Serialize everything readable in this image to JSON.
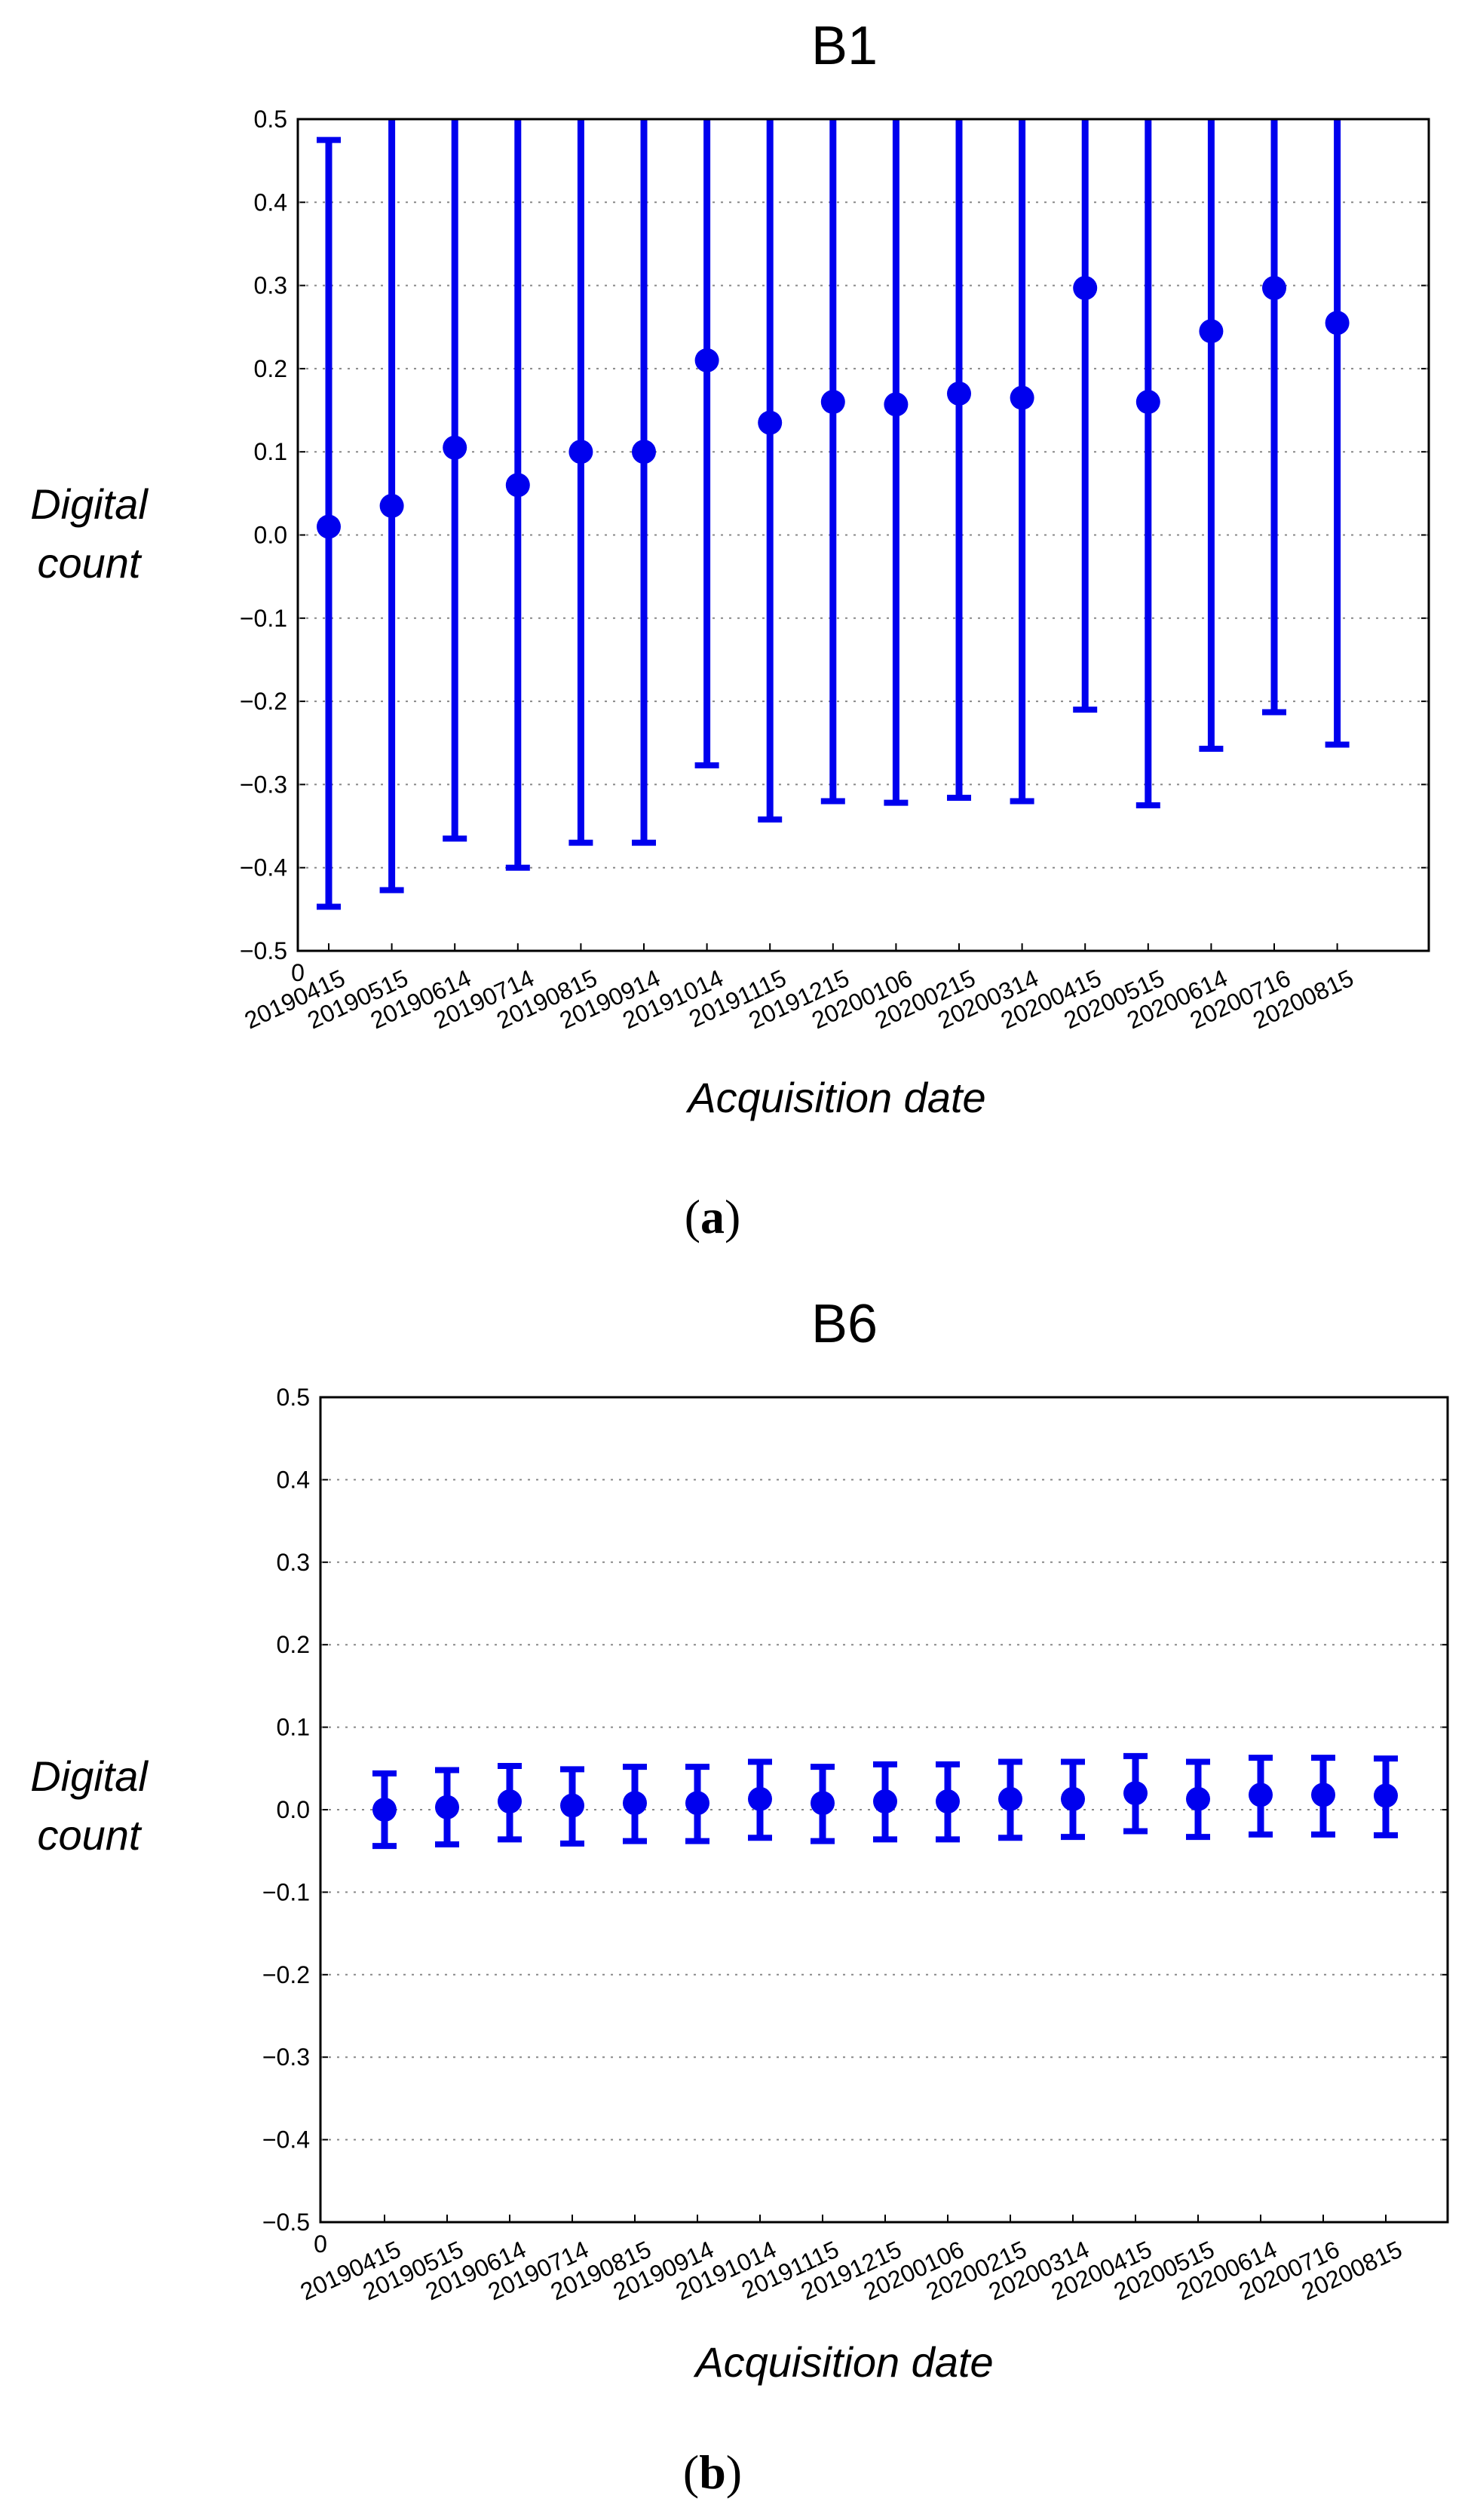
{
  "colors": {
    "series": "#0000ee",
    "grid": "#888888",
    "axis": "#000000"
  },
  "chart_data": [
    {
      "type": "scatter",
      "panel_label": "a",
      "title": "B1",
      "xlabel": "Acquisition date",
      "ylabel": [
        "Digital",
        "count"
      ],
      "ylim": [
        -0.5,
        0.5
      ],
      "yticks": [
        "0.5",
        "0.4",
        "0.3",
        "0.2",
        "0.1",
        "0.0",
        "−0.1",
        "−0.2",
        "−0.3",
        "−0.4",
        "−0.5"
      ],
      "x_zero_label": "0",
      "grid": "horizontal dotted",
      "categories": [
        "20190415",
        "20190515",
        "20190614",
        "20190714",
        "20190815",
        "20190914",
        "20191014",
        "20191115",
        "20191215",
        "20200106",
        "20200215",
        "20200314",
        "20200415",
        "20200515",
        "20200614",
        "20200716",
        "20200815"
      ],
      "values": [
        0.01,
        0.035,
        0.105,
        0.06,
        0.1,
        0.1,
        0.21,
        0.135,
        0.16,
        0.157,
        0.17,
        0.165,
        0.297,
        0.16,
        0.245,
        0.297,
        0.255
      ],
      "err_upper": [
        0.475,
        0.5,
        0.5,
        0.5,
        0.5,
        0.5,
        0.5,
        0.5,
        0.5,
        0.5,
        0.5,
        0.5,
        0.5,
        0.5,
        0.5,
        0.5,
        0.5
      ],
      "err_lower": [
        -0.447,
        -0.427,
        -0.365,
        -0.4,
        -0.37,
        -0.37,
        -0.277,
        -0.342,
        -0.32,
        -0.322,
        -0.316,
        -0.32,
        -0.21,
        -0.325,
        -0.257,
        -0.213,
        -0.252
      ]
    },
    {
      "type": "scatter",
      "panel_label": "b",
      "title": "B6",
      "xlabel": "Acquisition date",
      "ylabel": [
        "Digital",
        "count"
      ],
      "ylim": [
        -0.5,
        0.5
      ],
      "yticks": [
        "0.5",
        "0.4",
        "0.3",
        "0.2",
        "0.1",
        "0.0",
        "−0.1",
        "−0.2",
        "−0.3",
        "−0.4",
        "−0.5"
      ],
      "x_zero_label": "0",
      "grid": "horizontal dotted",
      "categories": [
        "20190415",
        "20190515",
        "20190614",
        "20190714",
        "20190815",
        "20190914",
        "20191014",
        "20191115",
        "20191215",
        "20200106",
        "20200215",
        "20200314",
        "20200415",
        "20200515",
        "20200614",
        "20200716",
        "20200815"
      ],
      "values": [
        0.0,
        0.003,
        0.01,
        0.005,
        0.008,
        0.008,
        0.013,
        0.008,
        0.01,
        0.01,
        0.013,
        0.013,
        0.02,
        0.013,
        0.018,
        0.018,
        0.017
      ],
      "err_upper": [
        0.044,
        0.048,
        0.053,
        0.049,
        0.052,
        0.052,
        0.058,
        0.052,
        0.055,
        0.055,
        0.058,
        0.058,
        0.065,
        0.058,
        0.063,
        0.063,
        0.062
      ],
      "err_lower": [
        -0.044,
        -0.042,
        -0.036,
        -0.041,
        -0.038,
        -0.038,
        -0.034,
        -0.038,
        -0.036,
        -0.036,
        -0.034,
        -0.033,
        -0.026,
        -0.033,
        -0.03,
        -0.03,
        -0.031
      ]
    }
  ]
}
